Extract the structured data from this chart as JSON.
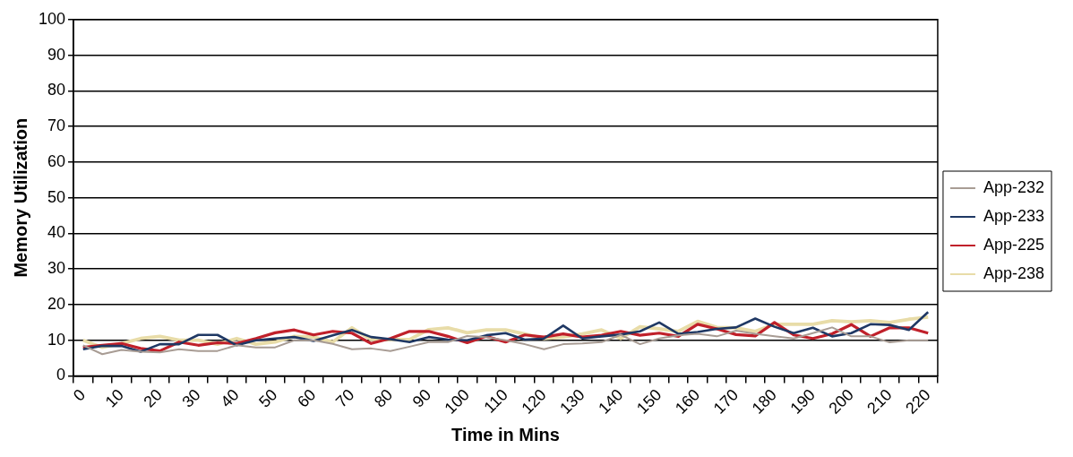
{
  "chart_data": {
    "type": "line",
    "xlabel": "Time in Mins",
    "ylabel": "Memory Utilization",
    "categories": [
      "0",
      null,
      "10",
      null,
      "20",
      null,
      "30",
      null,
      "40",
      null,
      "50",
      null,
      "60",
      null,
      "70",
      null,
      "80",
      null,
      "90",
      null,
      "100",
      null,
      "110",
      null,
      "120",
      null,
      "130",
      null,
      "140",
      null,
      "150",
      null,
      "160",
      null,
      "170",
      null,
      "180",
      null,
      "190",
      null,
      "200",
      null,
      "210",
      null,
      "220"
    ],
    "ylim": [
      0,
      100
    ],
    "yticks": [
      0,
      10,
      20,
      30,
      40,
      50,
      60,
      70,
      80,
      90,
      100
    ],
    "grid": "y",
    "legend": "right",
    "marker": "none",
    "line_style": "solid",
    "series": [
      {
        "name": "App-232",
        "color": "#a89c94",
        "values": [
          8.6,
          6.1,
          7.3,
          6.8,
          6.6,
          7.5,
          7,
          7,
          8.6,
          8,
          8,
          10,
          10,
          9,
          7.5,
          7.7,
          7,
          8.2,
          9.5,
          9.5,
          11.2,
          10.9,
          10,
          8.9,
          7.5,
          8.9,
          9.1,
          9.5,
          11.5,
          8.9,
          10.5,
          11.4,
          11.8,
          11.1,
          12.7,
          11.8,
          11.1,
          10.5,
          12,
          13.6,
          11.1,
          11.1,
          9.4,
          10,
          10
        ]
      },
      {
        "name": "App-233",
        "color": "#1f3864",
        "values": [
          7.5,
          8.4,
          8.4,
          6.8,
          8.9,
          8.9,
          11.5,
          11.5,
          8.6,
          10,
          10.5,
          10.9,
          9.8,
          11.4,
          12.9,
          10.9,
          10.3,
          9.5,
          10.9,
          10.2,
          10,
          11.4,
          12,
          10.2,
          10.5,
          14.1,
          10.5,
          11.1,
          11.6,
          12.5,
          15,
          11.8,
          12.3,
          13.2,
          13.6,
          16.1,
          13.8,
          12,
          13.5,
          11.1,
          12,
          14.5,
          14.3,
          12.9,
          17.9
        ]
      },
      {
        "name": "App-225",
        "color": "#c0202a",
        "values": [
          8,
          8.6,
          9.1,
          7.7,
          7,
          9.5,
          8.6,
          9.3,
          9.1,
          10.5,
          12.1,
          12.9,
          11.5,
          12.5,
          12,
          9.1,
          10.5,
          12.5,
          12.5,
          11.1,
          9.3,
          11.1,
          9.5,
          11.5,
          10.9,
          11.8,
          10.9,
          11.4,
          12.5,
          11.4,
          12,
          11.1,
          14.5,
          13.2,
          11.6,
          11.2,
          15,
          11.5,
          10.5,
          11.8,
          14.4,
          11.1,
          13.5,
          13.5,
          12
        ]
      },
      {
        "name": "App-238",
        "color": "#e8dca8",
        "values": [
          10,
          8,
          9.1,
          10.5,
          11.1,
          10,
          10,
          8.9,
          10.5,
          8.9,
          9.5,
          11.1,
          10.9,
          9.5,
          13.5,
          10.2,
          10.2,
          10.2,
          13,
          13.5,
          12.1,
          12.9,
          12.9,
          11.8,
          10.5,
          10.9,
          11.8,
          12.9,
          10.5,
          13.8,
          13.2,
          12.5,
          15.3,
          13.6,
          13.5,
          12.5,
          14.5,
          14.5,
          14.5,
          15.5,
          15.2,
          15.5,
          15,
          15.9,
          16.5
        ]
      }
    ]
  }
}
